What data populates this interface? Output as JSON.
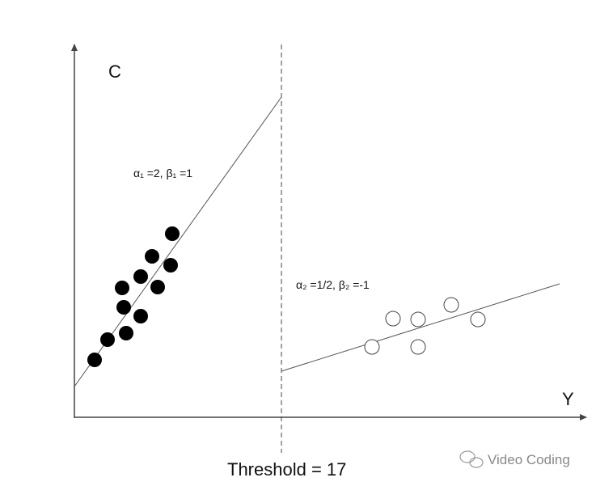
{
  "axes": {
    "y_label": "C",
    "x_label": "Y"
  },
  "annotations": {
    "left_fit": "α₁ =2, β₁ =1",
    "right_fit": "α₂ =1/2, β₂ =-1"
  },
  "threshold": "Threshold = 17",
  "watermark": "Video Coding"
}
